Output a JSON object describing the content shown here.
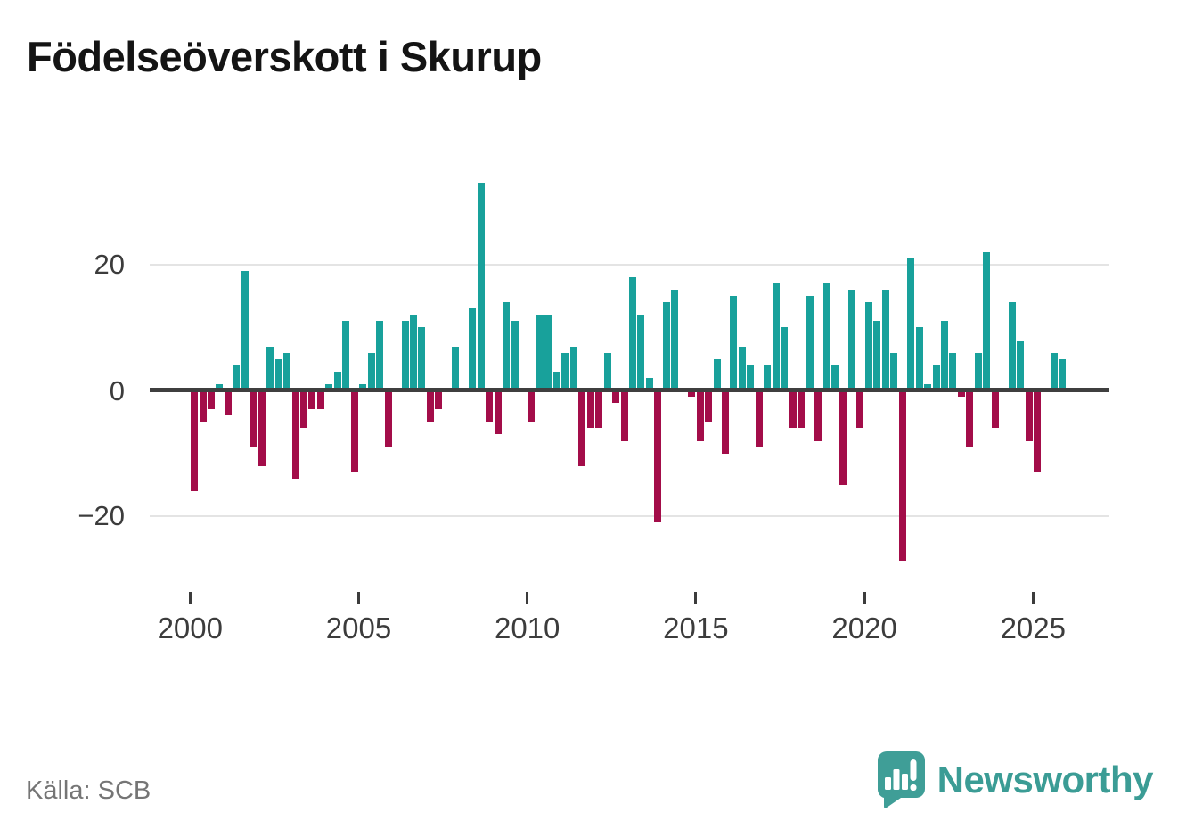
{
  "title": "Födelseöverskott i Skurup",
  "source": {
    "label": "Källa: SCB"
  },
  "branding": {
    "name": "Newsworthy",
    "icon": "speech-bubble-bar-chart-icon"
  },
  "colors": {
    "positive_bar": "#18a19b",
    "negative_bar": "#a30d49",
    "zero_line": "#3f3f3f",
    "gridline": "#e4e4e4",
    "axis_text": "#3c3c3c",
    "source_text": "#757575",
    "brand_teal": "#3f9e97",
    "title_text": "#141414"
  },
  "chart_data": {
    "type": "bar",
    "title": "Födelseöverskott i Skurup",
    "x_unit": "quarter",
    "x_range": [
      "2000 Q1",
      "2025 Q4"
    ],
    "x_tick_labels": [
      "2000",
      "2005",
      "2010",
      "2015",
      "2020",
      "2025"
    ],
    "y_ticks": [
      20,
      0,
      -20
    ],
    "y_tick_labels": [
      "20",
      "0",
      "−20"
    ],
    "ylim": [
      -29,
      35
    ],
    "grid": "horizontal",
    "legend": "none",
    "series_name": "Födelseöverskott",
    "years": [
      {
        "year": 2000,
        "values": [
          -16,
          -5,
          -3,
          1
        ]
      },
      {
        "year": 2001,
        "values": [
          -4,
          4,
          19,
          -9
        ]
      },
      {
        "year": 2002,
        "values": [
          -12,
          7,
          5,
          6
        ]
      },
      {
        "year": 2003,
        "values": [
          -14,
          -6,
          -3,
          -3
        ]
      },
      {
        "year": 2004,
        "values": [
          1,
          3,
          11,
          -13
        ]
      },
      {
        "year": 2005,
        "values": [
          1,
          6,
          11,
          -9
        ]
      },
      {
        "year": 2006,
        "values": [
          0,
          11,
          12,
          10
        ]
      },
      {
        "year": 2007,
        "values": [
          -5,
          -3,
          0,
          7
        ]
      },
      {
        "year": 2008,
        "values": [
          0,
          13,
          33,
          -5
        ]
      },
      {
        "year": 2009,
        "values": [
          -7,
          14,
          11,
          0
        ]
      },
      {
        "year": 2010,
        "values": [
          -5,
          12,
          12,
          3
        ]
      },
      {
        "year": 2011,
        "values": [
          6,
          7,
          -12,
          -6
        ]
      },
      {
        "year": 2012,
        "values": [
          -6,
          6,
          -2,
          -8
        ]
      },
      {
        "year": 2013,
        "values": [
          18,
          12,
          2,
          -21
        ]
      },
      {
        "year": 2014,
        "values": [
          14,
          16,
          0,
          -1
        ]
      },
      {
        "year": 2015,
        "values": [
          -8,
          -5,
          5,
          -10
        ]
      },
      {
        "year": 2016,
        "values": [
          15,
          7,
          4,
          -9
        ]
      },
      {
        "year": 2017,
        "values": [
          4,
          17,
          10,
          -6
        ]
      },
      {
        "year": 2018,
        "values": [
          -6,
          15,
          -8,
          17
        ]
      },
      {
        "year": 2019,
        "values": [
          4,
          -15,
          16,
          -6
        ]
      },
      {
        "year": 2020,
        "values": [
          14,
          11,
          16,
          6
        ]
      },
      {
        "year": 2021,
        "values": [
          -27,
          21,
          10,
          1
        ]
      },
      {
        "year": 2022,
        "values": [
          4,
          11,
          6,
          -1
        ]
      },
      {
        "year": 2023,
        "values": [
          -9,
          6,
          22,
          -6
        ]
      },
      {
        "year": 2024,
        "values": [
          0,
          14,
          8,
          -8
        ]
      },
      {
        "year": 2025,
        "values": [
          -13,
          0,
          6,
          5
        ]
      }
    ]
  }
}
